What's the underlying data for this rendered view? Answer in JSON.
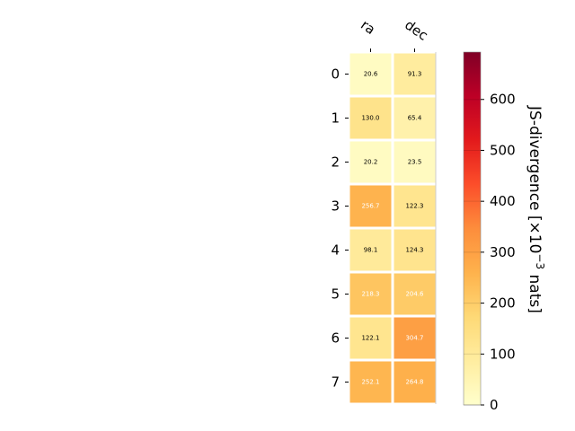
{
  "chart_data": {
    "type": "heatmap",
    "columns": [
      "ra",
      "dec"
    ],
    "rows": [
      "0",
      "1",
      "2",
      "3",
      "4",
      "5",
      "6",
      "7"
    ],
    "values": [
      [
        20.6,
        91.3
      ],
      [
        130.0,
        65.4
      ],
      [
        20.2,
        23.5
      ],
      [
        256.7,
        122.3
      ],
      [
        98.1,
        124.3
      ],
      [
        218.3,
        204.6
      ],
      [
        122.1,
        304.7
      ],
      [
        252.1,
        264.8
      ]
    ],
    "value_labels": [
      [
        "20.6",
        "91.3"
      ],
      [
        "130.0",
        "65.4"
      ],
      [
        "20.2",
        "23.5"
      ],
      [
        "256.7",
        "122.3"
      ],
      [
        "98.1",
        "124.3"
      ],
      [
        "218.3",
        "204.6"
      ],
      [
        "122.1",
        "304.7"
      ],
      [
        "252.1",
        "264.8"
      ]
    ],
    "colorbar": {
      "label": "JS-divergence [×10",
      "label_exp": "−3",
      "label_tail": " nats]",
      "range": [
        0,
        693
      ],
      "ticks": [
        0,
        100,
        200,
        300,
        400,
        500,
        600
      ],
      "colormap": "YlOrRd"
    }
  }
}
